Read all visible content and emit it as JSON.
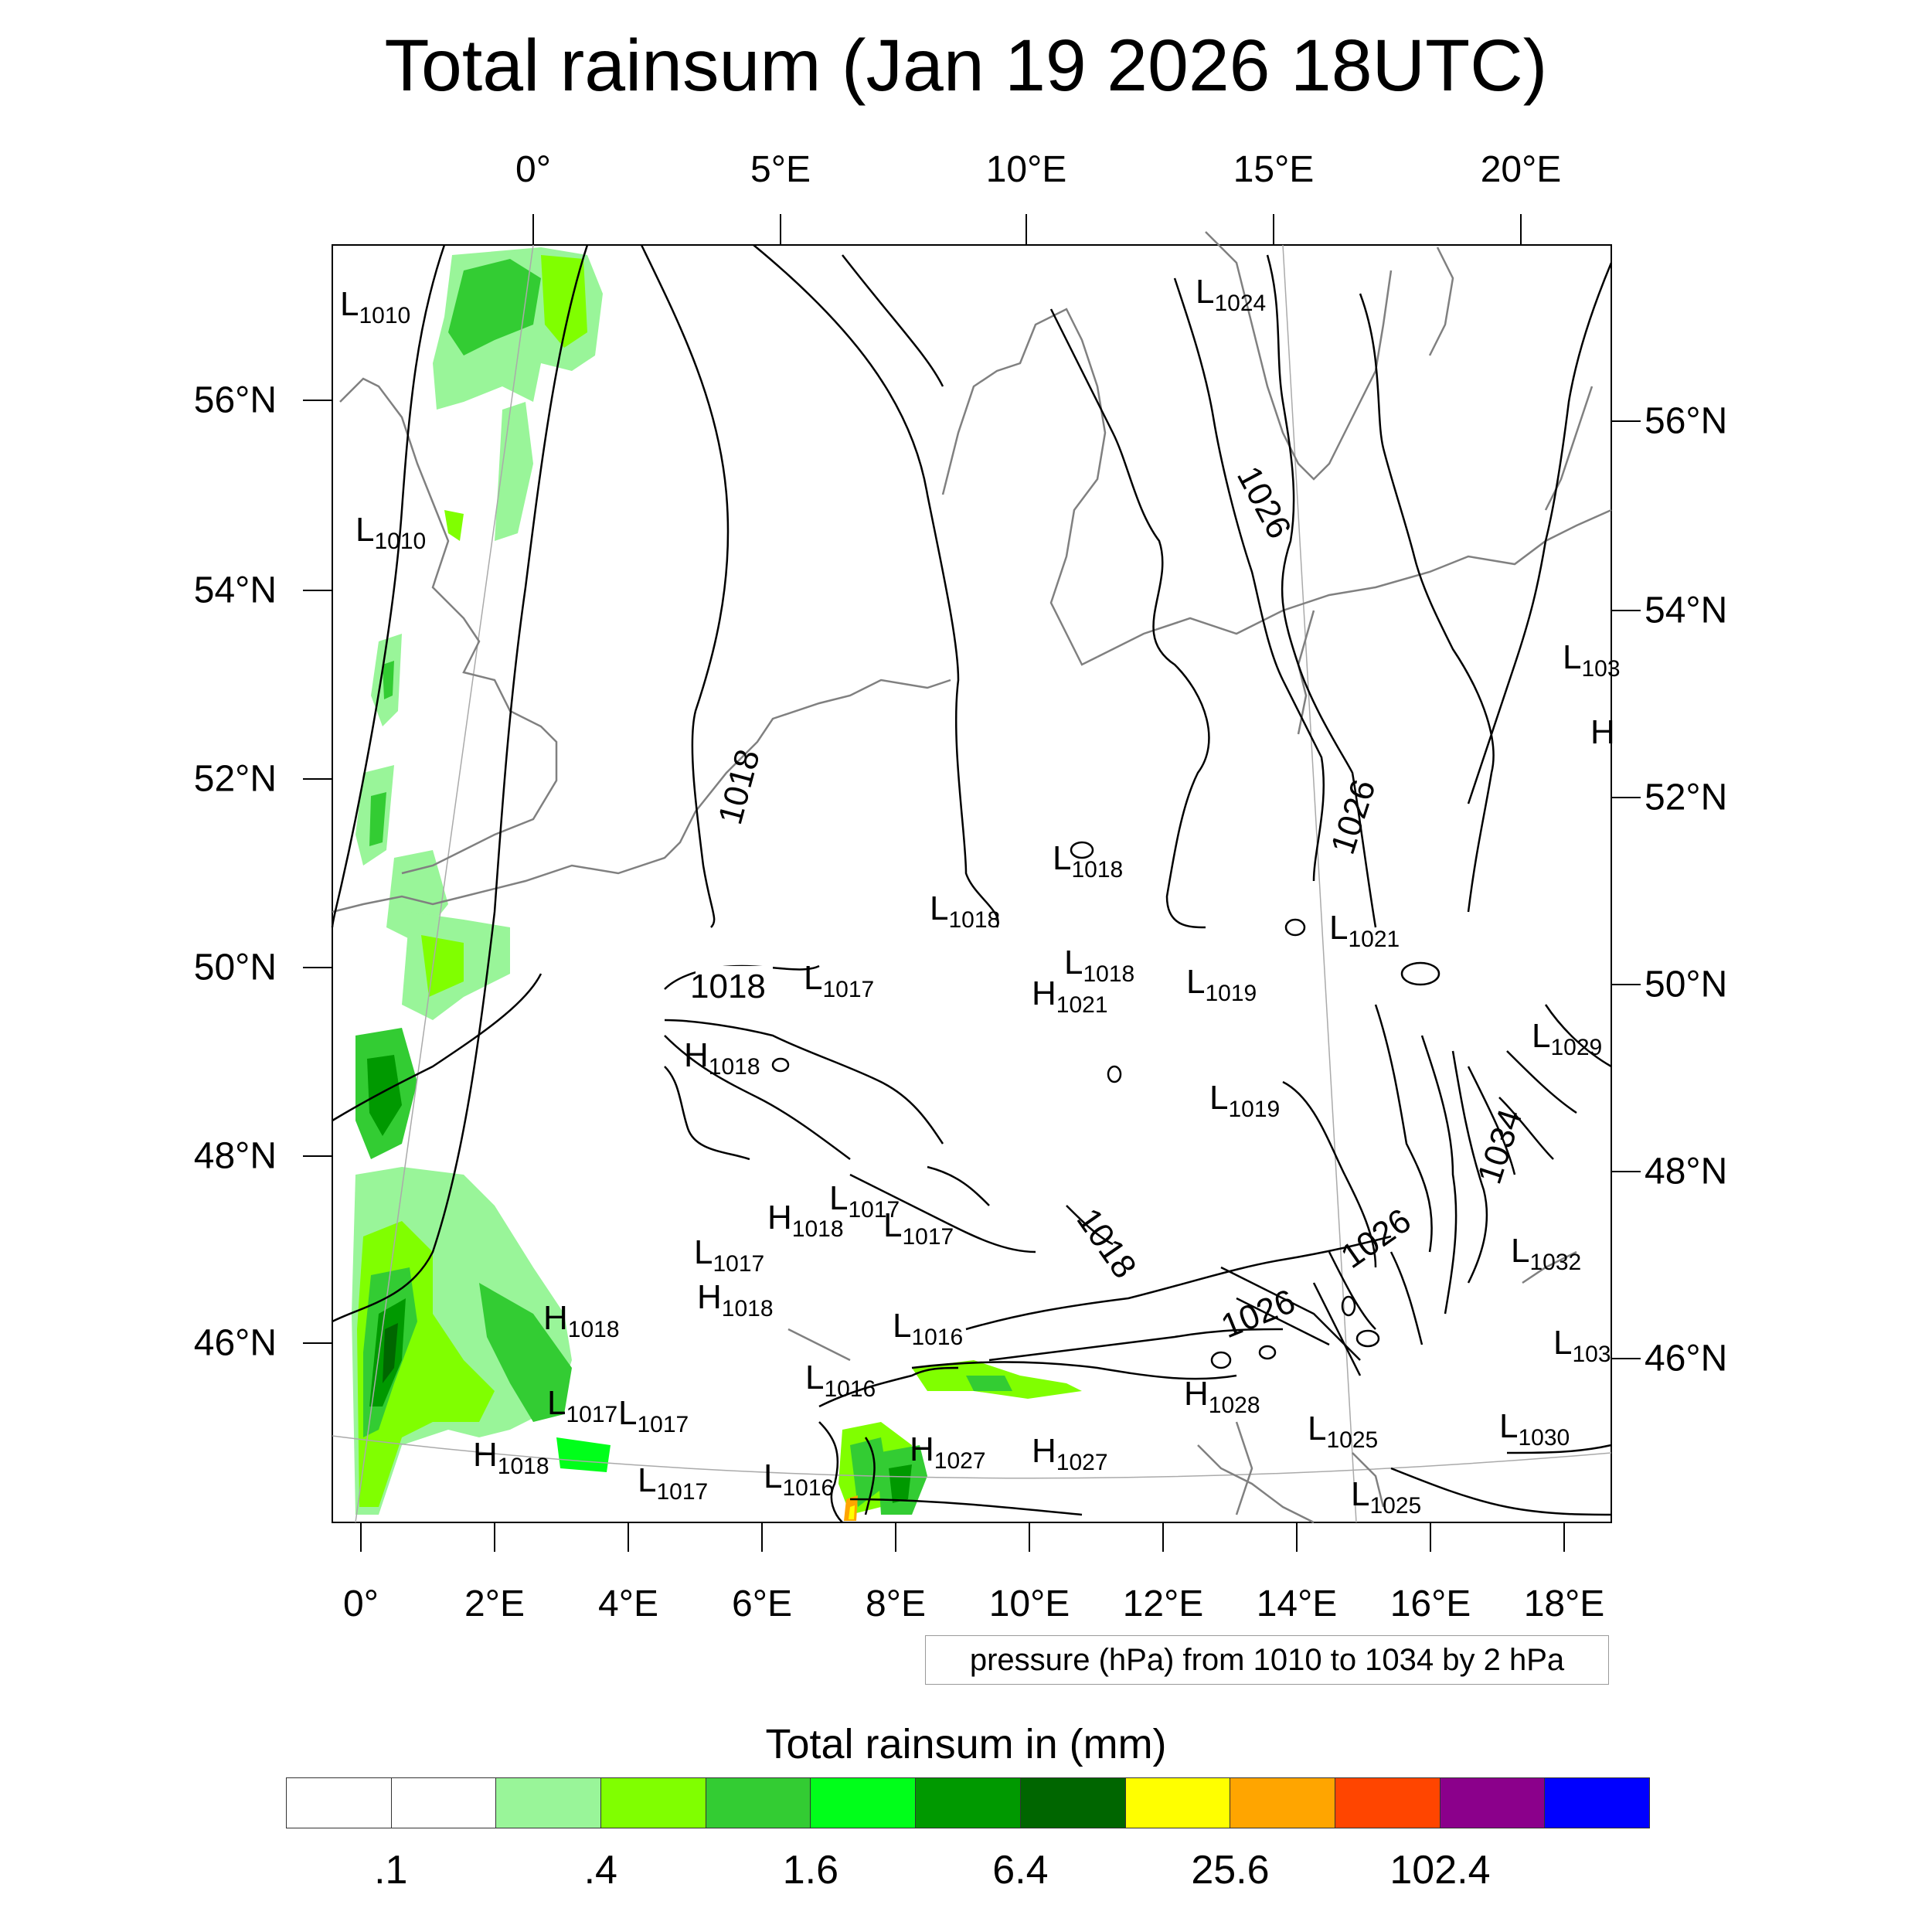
{
  "title": "Total rainsum (Jan 19 2026 18UTC)",
  "axes": {
    "top_ticks": [
      "0°",
      "5°E",
      "10°E",
      "15°E",
      "20°E"
    ],
    "bottom_ticks": [
      "0°",
      "2°E",
      "4°E",
      "6°E",
      "8°E",
      "10°E",
      "12°E",
      "14°E",
      "16°E",
      "18°E"
    ],
    "left_ticks": [
      "56°N",
      "54°N",
      "52°N",
      "50°N",
      "48°N",
      "46°N"
    ],
    "right_ticks": [
      "56°N",
      "54°N",
      "52°N",
      "50°N",
      "48°N",
      "46°N"
    ]
  },
  "contour_info": "pressure (hPa) from 1010 to 1034 by 2 hPa",
  "isobar_labels": [
    "1018",
    "1018",
    "1026",
    "1026",
    "1034",
    "1018",
    "1026",
    "1026"
  ],
  "pressure_centers": [
    {
      "type": "L",
      "value": "1010"
    },
    {
      "type": "L",
      "value": "1010"
    },
    {
      "type": "L",
      "value": "1024"
    },
    {
      "type": "L",
      "value": "1018"
    },
    {
      "type": "L",
      "value": "1018"
    },
    {
      "type": "L",
      "value": "1018"
    },
    {
      "type": "H",
      "value": "1021"
    },
    {
      "type": "L",
      "value": "1017"
    },
    {
      "type": "L",
      "value": "1019"
    },
    {
      "type": "L",
      "value": "1021"
    },
    {
      "type": "H",
      "value": "1018"
    },
    {
      "type": "L",
      "value": "1029"
    },
    {
      "type": "L",
      "value": "1019"
    },
    {
      "type": "L",
      "value": "1017"
    },
    {
      "type": "H",
      "value": "1018"
    },
    {
      "type": "L",
      "value": "1017"
    },
    {
      "type": "L",
      "value": "1017"
    },
    {
      "type": "H",
      "value": "1018"
    },
    {
      "type": "H",
      "value": "1018"
    },
    {
      "type": "L",
      "value": "1016"
    },
    {
      "type": "L",
      "value": "1016"
    },
    {
      "type": "L",
      "value": "1017"
    },
    {
      "type": "L",
      "value": "1017"
    },
    {
      "type": "H",
      "value": "1018"
    },
    {
      "type": "L",
      "value": "1017"
    },
    {
      "type": "L",
      "value": "1016"
    },
    {
      "type": "H",
      "value": "1027"
    },
    {
      "type": "H",
      "value": "1027"
    },
    {
      "type": "H",
      "value": "1028"
    },
    {
      "type": "L",
      "value": "1025"
    },
    {
      "type": "L",
      "value": "1025"
    },
    {
      "type": "L",
      "value": "1030"
    },
    {
      "type": "L",
      "value": "1032"
    },
    {
      "type": "L",
      "value": "103"
    },
    {
      "type": "L",
      "value": "103"
    },
    {
      "type": "H",
      "value": ""
    }
  ],
  "legend": {
    "title": "Total rainsum in (mm)",
    "colors": [
      "#ffffff",
      "#ffffff",
      "#99f599",
      "#80ff00",
      "#33cc33",
      "#00ff1a",
      "#009900",
      "#006600",
      "#ffff00",
      "#ffa500",
      "#ff4500",
      "#8b008b",
      "#0000ff"
    ],
    "labels": [
      ".1",
      ".4",
      "1.6",
      "6.4",
      "25.6",
      "102.4"
    ]
  }
}
